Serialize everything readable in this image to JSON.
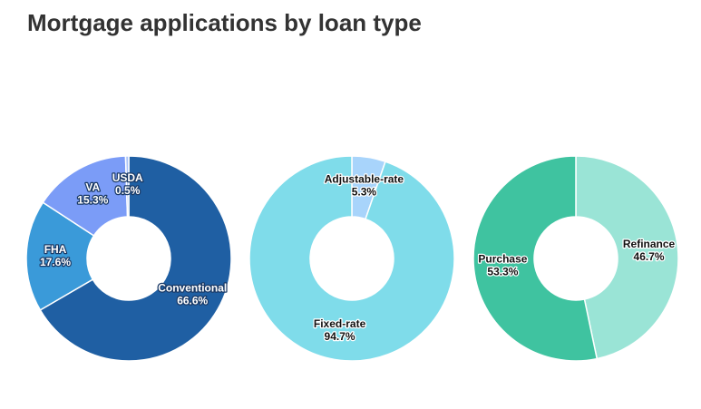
{
  "title": "Mortgage applications by loan type",
  "chart_data": [
    {
      "type": "pie",
      "categories": [
        "Conventional",
        "FHA",
        "VA",
        "USDA"
      ],
      "values": [
        66.6,
        17.6,
        15.3,
        0.5
      ],
      "value_labels": [
        "66.6%",
        "17.6%",
        "15.3%",
        "0.5%"
      ],
      "colors": [
        "#1f5fa3",
        "#3a9ad9",
        "#7b9cf7",
        "#a9c3f7"
      ]
    },
    {
      "type": "pie",
      "categories": [
        "Adjustable-rate",
        "Fixed-rate"
      ],
      "values": [
        5.3,
        94.7
      ],
      "value_labels": [
        "5.3%",
        "94.7%"
      ],
      "colors": [
        "#a8d4fb",
        "#7fdcea"
      ]
    },
    {
      "type": "pie",
      "categories": [
        "Refinance",
        "Purchase"
      ],
      "values": [
        46.7,
        53.3
      ],
      "value_labels": [
        "46.7%",
        "53.3%"
      ],
      "colors": [
        "#9ae4d6",
        "#3fc3a0"
      ]
    }
  ]
}
